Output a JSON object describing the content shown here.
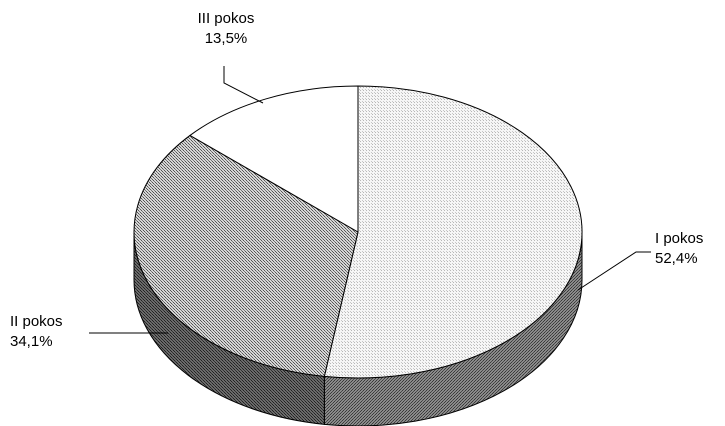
{
  "chart_data": {
    "type": "pie",
    "style": "3d",
    "title": "",
    "slices": [
      {
        "name": "I pokos",
        "value": 52.4,
        "label": "52,4%"
      },
      {
        "name": "II pokos",
        "value": 34.1,
        "label": "34,1%"
      },
      {
        "name": "III pokos",
        "value": 13.5,
        "label": "13,5%"
      }
    ],
    "legend": "none",
    "colors": {
      "edge": "#000000",
      "background": "#ffffff"
    }
  }
}
